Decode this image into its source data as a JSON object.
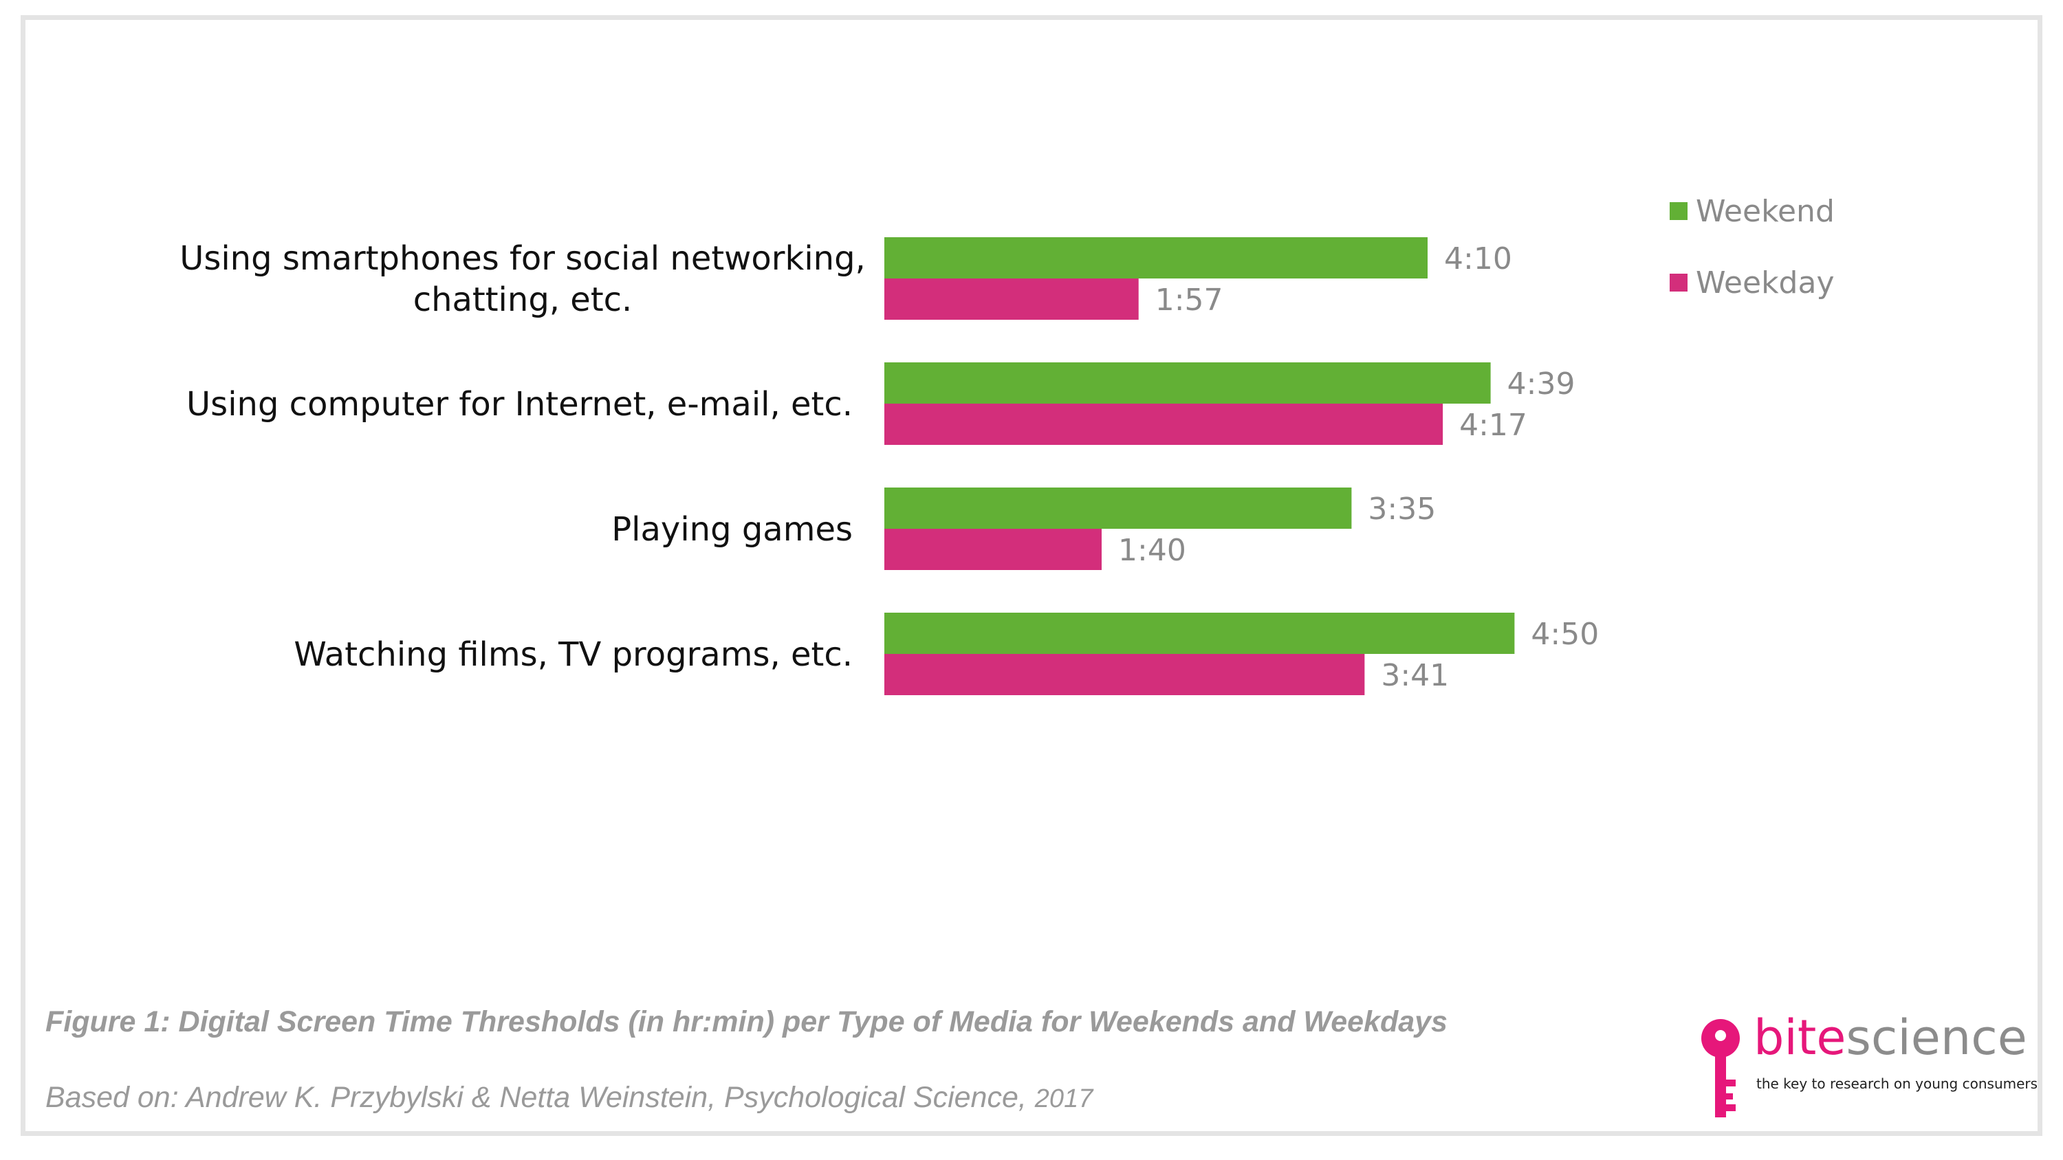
{
  "chart_data": {
    "type": "bar",
    "orientation": "horizontal",
    "categories": [
      [
        "Using smartphones for social networking,",
        "chatting, etc."
      ],
      [
        "Using computer for Internet, e-mail, etc."
      ],
      [
        "Playing games"
      ],
      [
        "Watching films, TV programs, etc."
      ]
    ],
    "series": [
      {
        "name": "Weekend",
        "color": "#62b035",
        "values": [
          250,
          279,
          215,
          290
        ],
        "labels": [
          "4:10",
          "4:39",
          "3:35",
          "4:50"
        ]
      },
      {
        "name": "Weekday",
        "color": "#d32e7b",
        "values": [
          117,
          257,
          100,
          221
        ],
        "labels": [
          "1:57",
          "4:17",
          "1:40",
          "3:41"
        ]
      }
    ],
    "value_unit": "minutes",
    "xlim": [
      0,
      300
    ],
    "grid": false,
    "legend_position": "top-right"
  },
  "caption": "Figure 1: Digital Screen Time Thresholds (in hr:min) per Type of Media for Weekends and Weekdays",
  "source": {
    "text": "Based on: Andrew K. Przybylski & Netta Weinstein, Psychological Science,",
    "year": "2017"
  },
  "logo": {
    "word_part1": "bite",
    "word_part2": "science",
    "tagline": "the key to research on young consumers",
    "icon": "key-icon",
    "colors": {
      "accent": "#e6177a",
      "secondary": "#8c8c8c"
    }
  }
}
